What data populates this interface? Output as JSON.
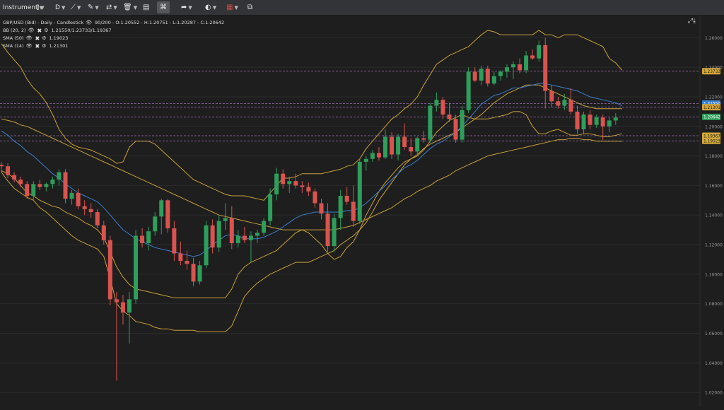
{
  "toolbar": {
    "instrument_label": "Instrument",
    "timeframe_label": "D",
    "items": [
      {
        "name": "candle-type-icon",
        "glyph": "⫾"
      },
      {
        "name": "draw-line-icon",
        "glyph": "⟋"
      },
      {
        "name": "brush-icon",
        "glyph": "✎"
      },
      {
        "name": "indicators-icon",
        "glyph": "⇄"
      },
      {
        "name": "trash-icon",
        "glyph": "🗑"
      },
      {
        "name": "panel-layout-icon",
        "glyph": "▤"
      },
      {
        "name": "fullscreen-grid-icon",
        "glyph": "⌘"
      },
      {
        "name": "share-arrow-icon",
        "glyph": "➦"
      },
      {
        "name": "theme-palette-icon",
        "glyph": "◐"
      },
      {
        "name": "language-flag-icon",
        "glyph": "▦"
      },
      {
        "name": "popout-window-icon",
        "glyph": "⧉"
      }
    ]
  },
  "legend": {
    "title": "GBP/USD (Bid) - Daily - Candlestick",
    "ohlc": "90/200 - O:1.20552 - H:1.20751 - L:1.20287 - C:1.20642",
    "indicators": [
      {
        "name": "BB (20, 2)",
        "value": "1.21550/1.23733/1.19367"
      },
      {
        "name": "SMA (50)",
        "value": "1.19023"
      },
      {
        "name": "SMA (14)",
        "value": "1.21301"
      }
    ]
  },
  "chart_data": {
    "type": "candlestick",
    "title": "GBP/USD (Bid) - Daily - Candlestick",
    "ylim": [
      1.01,
      1.275
    ],
    "y_ticks": [
      "1.26000",
      "1.24000",
      "1.22000",
      "1.20000",
      "1.18000",
      "1.16000",
      "1.14000",
      "1.12000",
      "1.10000",
      "1.08000",
      "1.06000",
      "1.04000",
      "1.02000"
    ],
    "candles": [
      [
        1.174,
        1.176,
        1.169,
        1.173
      ],
      [
        1.173,
        1.175,
        1.165,
        1.167
      ],
      [
        1.167,
        1.169,
        1.162,
        1.164
      ],
      [
        1.164,
        1.166,
        1.159,
        1.161
      ],
      [
        1.161,
        1.163,
        1.151,
        1.153
      ],
      [
        1.153,
        1.163,
        1.15,
        1.161
      ],
      [
        1.161,
        1.164,
        1.157,
        1.159
      ],
      [
        1.159,
        1.162,
        1.156,
        1.161
      ],
      [
        1.161,
        1.166,
        1.158,
        1.164
      ],
      [
        1.164,
        1.171,
        1.16,
        1.169
      ],
      [
        1.169,
        1.171,
        1.148,
        1.151
      ],
      [
        1.151,
        1.157,
        1.147,
        1.155
      ],
      [
        1.155,
        1.158,
        1.144,
        1.146
      ],
      [
        1.146,
        1.15,
        1.14,
        1.144
      ],
      [
        1.144,
        1.148,
        1.138,
        1.142
      ],
      [
        1.142,
        1.144,
        1.131,
        1.133
      ],
      [
        1.133,
        1.136,
        1.12,
        1.123
      ],
      [
        1.123,
        1.126,
        1.079,
        1.083
      ],
      [
        1.083,
        1.088,
        1.028,
        1.081
      ],
      [
        1.081,
        1.086,
        1.066,
        1.074
      ],
      [
        1.074,
        1.088,
        1.053,
        1.083
      ],
      [
        1.083,
        1.13,
        1.08,
        1.126
      ],
      [
        1.126,
        1.131,
        1.118,
        1.121
      ],
      [
        1.121,
        1.132,
        1.116,
        1.129
      ],
      [
        1.129,
        1.142,
        1.126,
        1.139
      ],
      [
        1.139,
        1.151,
        1.127,
        1.15
      ],
      [
        1.15,
        1.151,
        1.128,
        1.131
      ],
      [
        1.131,
        1.136,
        1.109,
        1.114
      ],
      [
        1.114,
        1.122,
        1.106,
        1.109
      ],
      [
        1.109,
        1.116,
        1.103,
        1.107
      ],
      [
        1.107,
        1.111,
        1.092,
        1.095
      ],
      [
        1.095,
        1.109,
        1.093,
        1.106
      ],
      [
        1.106,
        1.136,
        1.104,
        1.133
      ],
      [
        1.133,
        1.137,
        1.114,
        1.118
      ],
      [
        1.118,
        1.14,
        1.115,
        1.136
      ],
      [
        1.136,
        1.148,
        1.13,
        1.138
      ],
      [
        1.138,
        1.146,
        1.117,
        1.121
      ],
      [
        1.121,
        1.13,
        1.118,
        1.126
      ],
      [
        1.126,
        1.132,
        1.121,
        1.123
      ],
      [
        1.123,
        1.129,
        1.108,
        1.126
      ],
      [
        1.126,
        1.13,
        1.121,
        1.128
      ],
      [
        1.128,
        1.138,
        1.126,
        1.136
      ],
      [
        1.136,
        1.158,
        1.133,
        1.154
      ],
      [
        1.154,
        1.172,
        1.15,
        1.168
      ],
      [
        1.168,
        1.171,
        1.158,
        1.161
      ],
      [
        1.161,
        1.166,
        1.155,
        1.163
      ],
      [
        1.163,
        1.168,
        1.158,
        1.16
      ],
      [
        1.16,
        1.163,
        1.155,
        1.159
      ],
      [
        1.159,
        1.162,
        1.153,
        1.156
      ],
      [
        1.156,
        1.158,
        1.145,
        1.148
      ],
      [
        1.148,
        1.151,
        1.137,
        1.141
      ],
      [
        1.141,
        1.148,
        1.115,
        1.119
      ],
      [
        1.119,
        1.141,
        1.115,
        1.138
      ],
      [
        1.138,
        1.157,
        1.13,
        1.153
      ],
      [
        1.153,
        1.159,
        1.147,
        1.149
      ],
      [
        1.149,
        1.16,
        1.132,
        1.136
      ],
      [
        1.136,
        1.178,
        1.134,
        1.176
      ],
      [
        1.176,
        1.18,
        1.17,
        1.178
      ],
      [
        1.178,
        1.184,
        1.176,
        1.182
      ],
      [
        1.182,
        1.186,
        1.177,
        1.179
      ],
      [
        1.179,
        1.198,
        1.178,
        1.193
      ],
      [
        1.193,
        1.196,
        1.178,
        1.181
      ],
      [
        1.181,
        1.195,
        1.177,
        1.193
      ],
      [
        1.193,
        1.202,
        1.184,
        1.186
      ],
      [
        1.186,
        1.192,
        1.18,
        1.183
      ],
      [
        1.183,
        1.193,
        1.18,
        1.192
      ],
      [
        1.192,
        1.197,
        1.189,
        1.191
      ],
      [
        1.191,
        1.216,
        1.189,
        1.214
      ],
      [
        1.214,
        1.223,
        1.21,
        1.218
      ],
      [
        1.218,
        1.22,
        1.205,
        1.208
      ],
      [
        1.208,
        1.216,
        1.203,
        1.205
      ],
      [
        1.205,
        1.208,
        1.189,
        1.191
      ],
      [
        1.191,
        1.214,
        1.189,
        1.211
      ],
      [
        1.211,
        1.24,
        1.209,
        1.237
      ],
      [
        1.237,
        1.24,
        1.23,
        1.231
      ],
      [
        1.231,
        1.241,
        1.228,
        1.239
      ],
      [
        1.239,
        1.241,
        1.227,
        1.229
      ],
      [
        1.229,
        1.237,
        1.228,
        1.234
      ],
      [
        1.234,
        1.238,
        1.231,
        1.237
      ],
      [
        1.237,
        1.242,
        1.233,
        1.24
      ],
      [
        1.24,
        1.244,
        1.232,
        1.242
      ],
      [
        1.242,
        1.246,
        1.236,
        1.238
      ],
      [
        1.238,
        1.251,
        1.236,
        1.248
      ],
      [
        1.248,
        1.252,
        1.245,
        1.246
      ],
      [
        1.246,
        1.258,
        1.244,
        1.255
      ],
      [
        1.255,
        1.26,
        1.212,
        1.224
      ],
      [
        1.224,
        1.228,
        1.213,
        1.217
      ],
      [
        1.217,
        1.22,
        1.212,
        1.214
      ],
      [
        1.214,
        1.222,
        1.211,
        1.218
      ],
      [
        1.218,
        1.226,
        1.208,
        1.21
      ],
      [
        1.21,
        1.214,
        1.195,
        1.198
      ],
      [
        1.198,
        1.21,
        1.195,
        1.208
      ],
      [
        1.208,
        1.211,
        1.198,
        1.201
      ],
      [
        1.201,
        1.208,
        1.199,
        1.206
      ],
      [
        1.206,
        1.208,
        1.191,
        1.2
      ],
      [
        1.2,
        1.206,
        1.196,
        1.204
      ],
      [
        1.204,
        1.209,
        1.201,
        1.206
      ]
    ],
    "series": [
      {
        "name": "BB (20, 2)",
        "color": "#c9a13a",
        "values": [
          1.17,
          1.168,
          1.165,
          1.16,
          1.155,
          1.153,
          1.15,
          1.148,
          1.146,
          1.145,
          1.142,
          1.14,
          1.138,
          1.135,
          1.133,
          1.13,
          1.125,
          1.115,
          1.105,
          1.098,
          1.093,
          1.09,
          1.089,
          1.088,
          1.087,
          1.086,
          1.085,
          1.084,
          1.084,
          1.084,
          1.084,
          1.084,
          1.084,
          1.084,
          1.084,
          1.084,
          1.09,
          1.1,
          1.105,
          1.108,
          1.11,
          1.112,
          1.114,
          1.116,
          1.12,
          1.124,
          1.128,
          1.13,
          1.128,
          1.124,
          1.12,
          1.114,
          1.11,
          1.112,
          1.118,
          1.122,
          1.13,
          1.14,
          1.148,
          1.156,
          1.162,
          1.167,
          1.172,
          1.176,
          1.178,
          1.18,
          1.184,
          1.19,
          1.196,
          1.2,
          1.204,
          1.206,
          1.208,
          1.206,
          1.205,
          1.205,
          1.205,
          1.206,
          1.207,
          1.208,
          1.21,
          1.21,
          1.208,
          1.2,
          1.195,
          1.195,
          1.197,
          1.198,
          1.196,
          1.194,
          1.194,
          1.195,
          1.195,
          1.194,
          1.193,
          1.193,
          1.194,
          1.195
        ]
      },
      {
        "name": "BB (20, 2)",
        "color": "#c9a13a",
        "values": [
          1.256,
          1.25,
          1.245,
          1.24,
          1.232,
          1.226,
          1.222,
          1.216,
          1.208,
          1.198,
          1.192,
          1.188,
          1.186,
          1.185,
          1.184,
          1.182,
          1.18,
          1.178,
          1.175,
          1.176,
          1.186,
          1.19,
          1.19,
          1.19,
          1.188,
          1.184,
          1.18,
          1.176,
          1.172,
          1.168,
          1.164,
          1.162,
          1.16,
          1.158,
          1.156,
          1.154,
          1.153,
          1.153,
          1.153,
          1.152,
          1.151,
          1.15,
          1.155,
          1.16,
          1.165,
          1.165,
          1.166,
          1.168,
          1.168,
          1.168,
          1.168,
          1.169,
          1.17,
          1.171,
          1.173,
          1.174,
          1.178,
          1.185,
          1.19,
          1.195,
          1.2,
          1.205,
          1.208,
          1.212,
          1.215,
          1.22,
          1.228,
          1.235,
          1.242,
          1.245,
          1.248,
          1.25,
          1.252,
          1.254,
          1.258,
          1.262,
          1.265,
          1.264,
          1.262,
          1.262,
          1.262,
          1.262,
          1.262,
          1.262,
          1.265,
          1.262,
          1.262,
          1.26,
          1.262,
          1.262,
          1.262,
          1.26,
          1.258,
          1.256,
          1.254,
          1.246,
          1.243,
          1.238
        ]
      },
      {
        "name": "BB (20, 2)",
        "color": "#c9a13a",
        "values": [
          1.169,
          1.163,
          1.158,
          1.155,
          1.152,
          1.15,
          1.145,
          1.142,
          1.138,
          1.134,
          1.13,
          1.126,
          1.123,
          1.121,
          1.119,
          1.117,
          1.112,
          1.097,
          1.08,
          1.075,
          1.072,
          1.068,
          1.067,
          1.066,
          1.064,
          1.063,
          1.063,
          1.062,
          1.062,
          1.062,
          1.062,
          1.061,
          1.061,
          1.061,
          1.061,
          1.061,
          1.065,
          1.075,
          1.085,
          1.09,
          1.094,
          1.097,
          1.1,
          1.102,
          1.104,
          1.106,
          1.108,
          1.108,
          1.108,
          1.11,
          1.112,
          1.114,
          1.116,
          1.12,
          1.123,
          1.126,
          1.13,
          1.135,
          1.142,
          1.15,
          1.156,
          1.162,
          1.168,
          1.174,
          1.178,
          1.181,
          1.185,
          1.188,
          1.19,
          1.192,
          1.194,
          1.196,
          1.199,
          1.202,
          1.205,
          1.208,
          1.212,
          1.216,
          1.219,
          1.222,
          1.224,
          1.226,
          1.228,
          1.228,
          1.228,
          1.226,
          1.224,
          1.222,
          1.22,
          1.218,
          1.216,
          1.214,
          1.213,
          1.212,
          1.212,
          1.212,
          1.212,
          1.212
        ]
      },
      {
        "name": "SMA (50)",
        "color": "#c9a13a",
        "values": [
          1.205,
          1.204,
          1.203,
          1.201,
          1.2,
          1.198,
          1.196,
          1.194,
          1.192,
          1.19,
          1.188,
          1.186,
          1.184,
          1.182,
          1.18,
          1.178,
          1.176,
          1.174,
          1.172,
          1.17,
          1.168,
          1.166,
          1.164,
          1.162,
          1.16,
          1.158,
          1.156,
          1.154,
          1.152,
          1.15,
          1.148,
          1.146,
          1.144,
          1.142,
          1.14,
          1.139,
          1.138,
          1.137,
          1.136,
          1.135,
          1.134,
          1.133,
          1.132,
          1.131,
          1.13,
          1.13,
          1.13,
          1.13,
          1.13,
          1.13,
          1.13,
          1.13,
          1.13,
          1.131,
          1.132,
          1.133,
          1.135,
          1.137,
          1.139,
          1.141,
          1.143,
          1.145,
          1.148,
          1.151,
          1.153,
          1.156,
          1.158,
          1.16,
          1.163,
          1.165,
          1.167,
          1.17,
          1.172,
          1.174,
          1.176,
          1.178,
          1.18,
          1.181,
          1.182,
          1.183,
          1.184,
          1.185,
          1.186,
          1.187,
          1.188,
          1.189,
          1.19,
          1.191,
          1.191,
          1.192,
          1.192,
          1.191,
          1.191,
          1.19,
          1.19,
          1.19,
          1.19,
          1.19
        ]
      },
      {
        "name": "SMA (14)",
        "color": "#3a7fd0",
        "values": [
          1.197,
          1.194,
          1.19,
          1.187,
          1.183,
          1.18,
          1.176,
          1.172,
          1.168,
          1.165,
          1.161,
          1.158,
          1.155,
          1.153,
          1.151,
          1.149,
          1.145,
          1.14,
          1.135,
          1.13,
          1.127,
          1.124,
          1.122,
          1.12,
          1.118,
          1.117,
          1.116,
          1.115,
          1.114,
          1.113,
          1.112,
          1.113,
          1.116,
          1.12,
          1.123,
          1.126,
          1.127,
          1.126,
          1.124,
          1.124,
          1.124,
          1.125,
          1.127,
          1.129,
          1.132,
          1.135,
          1.138,
          1.14,
          1.141,
          1.142,
          1.142,
          1.142,
          1.142,
          1.142,
          1.143,
          1.143,
          1.145,
          1.148,
          1.152,
          1.156,
          1.16,
          1.164,
          1.168,
          1.172,
          1.174,
          1.177,
          1.181,
          1.185,
          1.188,
          1.19,
          1.193,
          1.196,
          1.2,
          1.205,
          1.21,
          1.215,
          1.218,
          1.221,
          1.222,
          1.224,
          1.226,
          1.226,
          1.227,
          1.228,
          1.229,
          1.229,
          1.228,
          1.227,
          1.226,
          1.225,
          1.224,
          1.222,
          1.22,
          1.219,
          1.218,
          1.217,
          1.216,
          1.214
        ]
      }
    ],
    "price_lines": [
      {
        "label": "1.23733",
        "value": 1.23733,
        "bg": "#d4a73a",
        "fg": "#1e1e1e"
      },
      {
        "label": "1.21550",
        "value": 1.2155,
        "bg": "#3a7fd0",
        "fg": "#ffffff"
      },
      {
        "label": "1.21301",
        "value": 1.21301,
        "bg": "#d4a73a",
        "fg": "#1e1e1e"
      },
      {
        "label": "1.20642",
        "value": 1.20642,
        "bg": "#2e9e5b",
        "fg": "#ffffff"
      },
      {
        "label": "1.19367",
        "value": 1.19367,
        "bg": "#d4a73a",
        "fg": "#1e1e1e"
      },
      {
        "label": "1.19023",
        "value": 1.19023,
        "bg": "#d4a73a",
        "fg": "#1e1e1e"
      }
    ],
    "colors": {
      "up": "#2e9e5b",
      "down": "#d9534f",
      "grid": "#2b2b2b",
      "guide": "#9b6fb5",
      "axis_text": "#9a9a9a"
    }
  }
}
